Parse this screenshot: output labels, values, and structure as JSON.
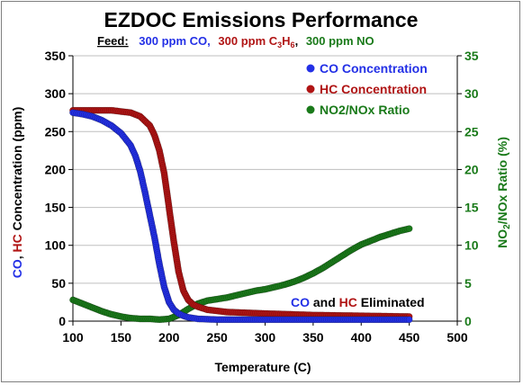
{
  "colors": {
    "co": "#2330e6",
    "hc": "#b01414",
    "no2": "#1a7a1a",
    "grid": "#bfbfbf",
    "axis": "#000000"
  },
  "chart_data": {
    "type": "scatter",
    "title": "EZDOC Emissions Performance",
    "feed": {
      "label": "Feed:",
      "co": "300 ppm CO,",
      "hc_prefix": "300 ppm C",
      "hc_sub1": "3",
      "hc_mid": "H",
      "hc_sub2": "6",
      "hc_suffix": ",",
      "no": "300 ppm NO"
    },
    "xlabel": "Temperature (C)",
    "xlim": [
      100,
      500
    ],
    "xticks": [
      100,
      150,
      200,
      250,
      300,
      350,
      400,
      450,
      500
    ],
    "ylabel_left": {
      "co": "CO",
      "sep": ", ",
      "hc": "HC",
      "rest": " Concentration (ppm)"
    },
    "ylim_left": [
      0,
      350
    ],
    "yticks_left": [
      0,
      50,
      100,
      150,
      200,
      250,
      300,
      350
    ],
    "ylabel_right": {
      "pre": "NO",
      "sub": "2",
      "post": "/NOx Ratio (%)"
    },
    "ylim_right": [
      0,
      35
    ],
    "yticks_right": [
      0,
      5,
      10,
      15,
      20,
      25,
      30,
      35
    ],
    "grid": "horizontal",
    "legend_position": "top-right",
    "annotation": {
      "co": "CO",
      "and": " and ",
      "hc": "HC",
      "rest": " Eliminated"
    },
    "series": [
      {
        "name": "CO Concentration",
        "axis": "left",
        "x": [
          100,
          110,
          120,
          130,
          140,
          150,
          160,
          165,
          170,
          175,
          180,
          185,
          190,
          195,
          200,
          205,
          210,
          215,
          220,
          230,
          250,
          300,
          350,
          400,
          450
        ],
        "y": [
          275,
          273,
          270,
          265,
          258,
          248,
          232,
          218,
          198,
          170,
          140,
          110,
          75,
          45,
          25,
          15,
          10,
          7,
          5,
          3,
          2,
          2,
          2,
          2,
          2
        ]
      },
      {
        "name": "HC Concentration",
        "axis": "left",
        "x": [
          100,
          120,
          140,
          160,
          170,
          180,
          185,
          190,
          195,
          200,
          205,
          210,
          215,
          220,
          225,
          230,
          240,
          260,
          300,
          350,
          400,
          450
        ],
        "y": [
          278,
          278,
          278,
          275,
          270,
          258,
          245,
          225,
          195,
          150,
          105,
          65,
          40,
          28,
          22,
          19,
          15,
          12,
          10,
          8,
          7,
          6
        ]
      },
      {
        "name": "NO2/NOx Ratio",
        "axis": "right",
        "x": [
          100,
          110,
          120,
          130,
          140,
          150,
          160,
          170,
          180,
          190,
          200,
          210,
          220,
          230,
          240,
          250,
          260,
          270,
          280,
          290,
          300,
          310,
          320,
          330,
          340,
          350,
          360,
          370,
          380,
          390,
          400,
          410,
          420,
          430,
          440,
          450
        ],
        "y": [
          2.8,
          2.3,
          1.8,
          1.3,
          0.9,
          0.6,
          0.4,
          0.3,
          0.3,
          0.2,
          0.3,
          0.8,
          1.6,
          2.3,
          2.7,
          2.9,
          3.1,
          3.4,
          3.7,
          4.0,
          4.2,
          4.5,
          4.8,
          5.2,
          5.7,
          6.3,
          7.0,
          7.8,
          8.6,
          9.4,
          10.1,
          10.6,
          11.1,
          11.5,
          11.9,
          12.2
        ]
      }
    ]
  }
}
